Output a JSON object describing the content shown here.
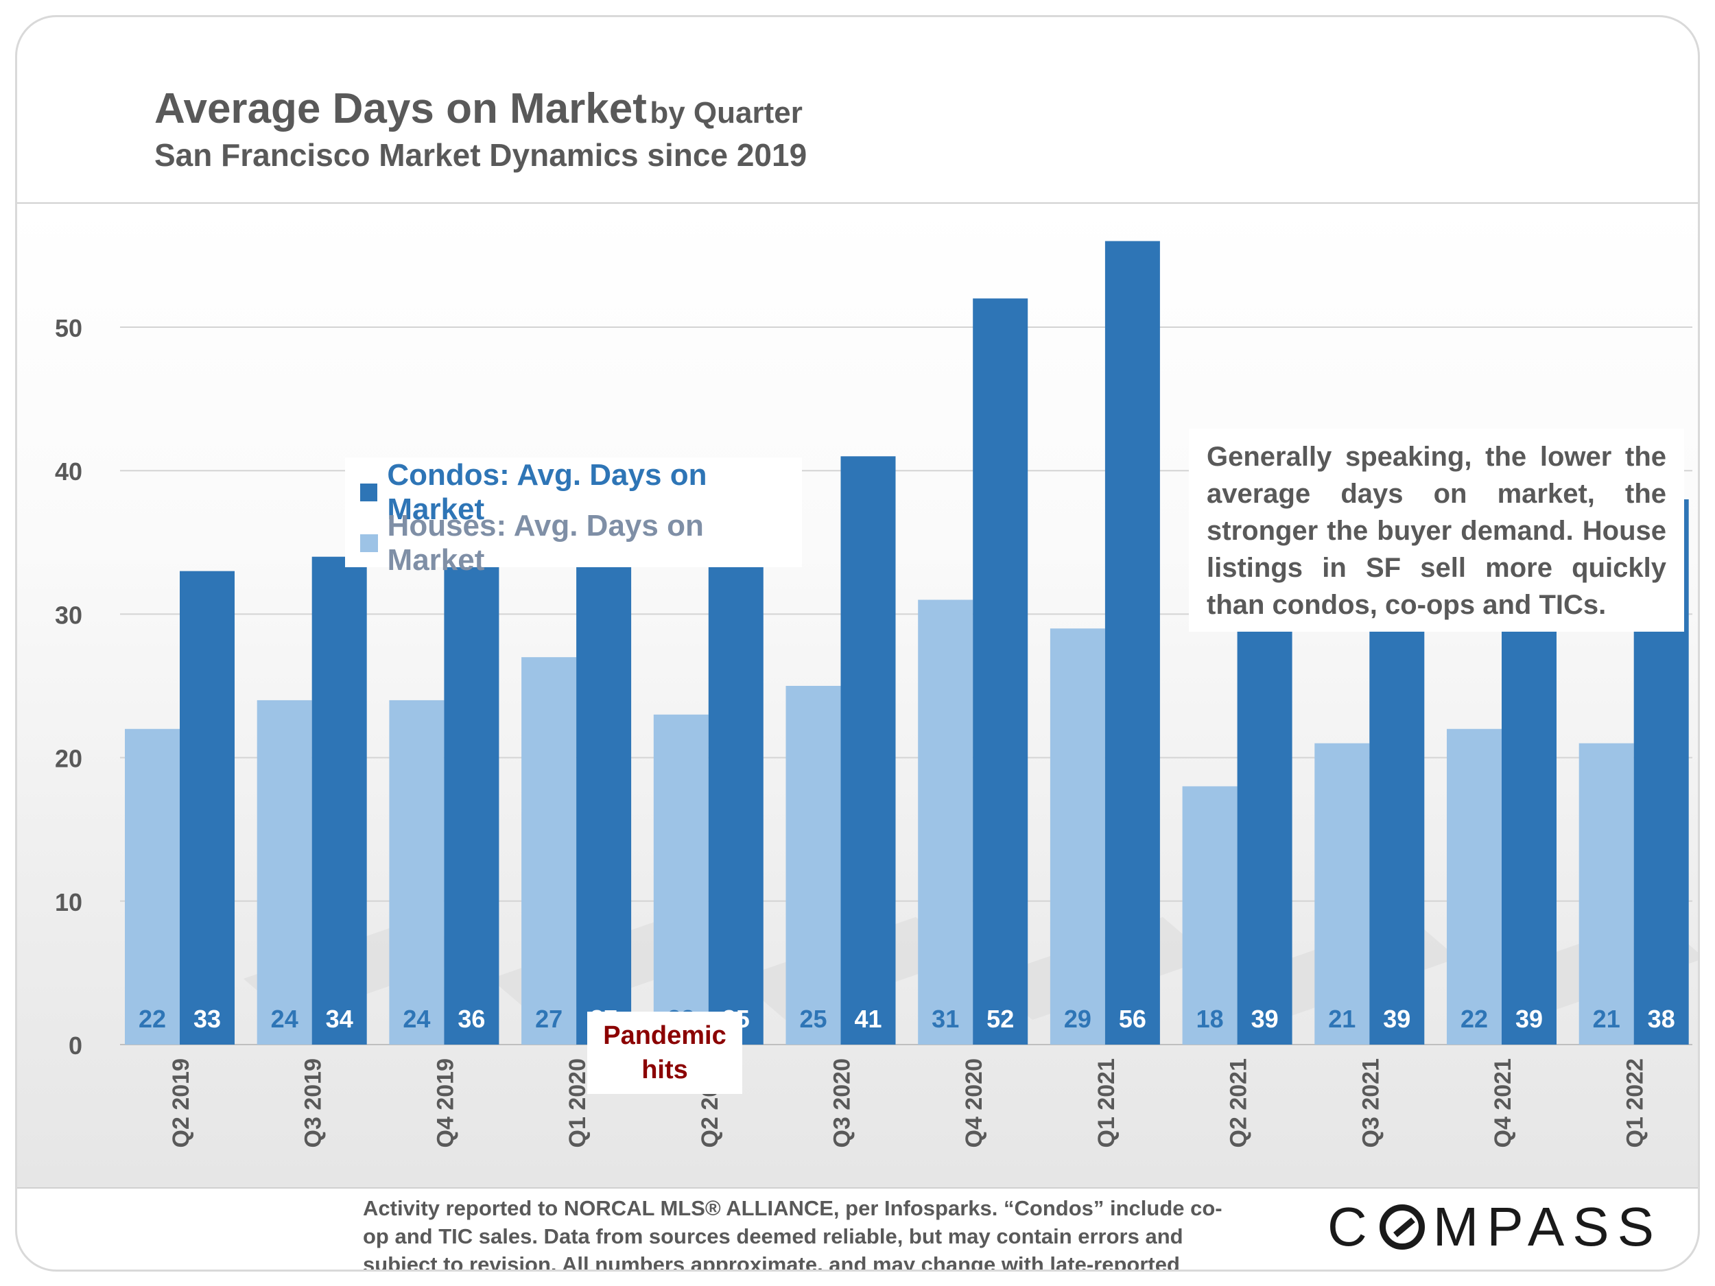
{
  "title": {
    "main": "Average Days on Market",
    "suffix": "by Quarter",
    "subtitle": "San Francisco Market Dynamics since 2019"
  },
  "legend": {
    "condos": "Condos: Avg. Days on Market",
    "houses": "Houses: Avg. Days on Market"
  },
  "note": "Generally speaking, the lower the average days on market, the stronger the buyer demand.  House listings in SF sell more quickly than condos, co-ops and TICs.",
  "annotation": {
    "line1": "Pandemic",
    "line2": "hits"
  },
  "footnote": "Activity reported to NORCAL MLS® ALLIANCE, per Infosparks. “Condos” include co-op and TIC sales. Data from sources deemed reliable, but may contain errors and subject to revision. All numbers approximate, and may change with late-reported sales.",
  "logo": {
    "left": "C",
    "right": "MPASS"
  },
  "colors": {
    "condos": "#2e75b6",
    "houses": "#9dc3e6",
    "label_houses": "#2e75b6",
    "label_condos": "#ffffff",
    "annotation": "#8b0000"
  },
  "chart_data": {
    "type": "bar",
    "title": "Average Days on Market by Quarter",
    "subtitle": "San Francisco Market Dynamics since 2019",
    "categories": [
      "Q2 2019",
      "Q3 2019",
      "Q4 2019",
      "Q1 2020",
      "Q2 2020",
      "Q3 2020",
      "Q4 2020",
      "Q1 2021",
      "Q2 2021",
      "Q3 2021",
      "Q4 2021",
      "Q1 2022"
    ],
    "series": [
      {
        "name": "Houses: Avg. Days on Market",
        "values": [
          22,
          24,
          24,
          27,
          23,
          25,
          31,
          29,
          18,
          21,
          22,
          21
        ]
      },
      {
        "name": "Condos: Avg. Days on Market",
        "values": [
          33,
          34,
          36,
          37,
          35,
          41,
          52,
          56,
          39,
          39,
          39,
          38
        ]
      }
    ],
    "yticks": [
      0,
      10,
      20,
      30,
      40,
      50
    ],
    "ylim": [
      0,
      58
    ],
    "grid": true,
    "legend_position": "top-left",
    "xlabel": "",
    "ylabel": ""
  }
}
